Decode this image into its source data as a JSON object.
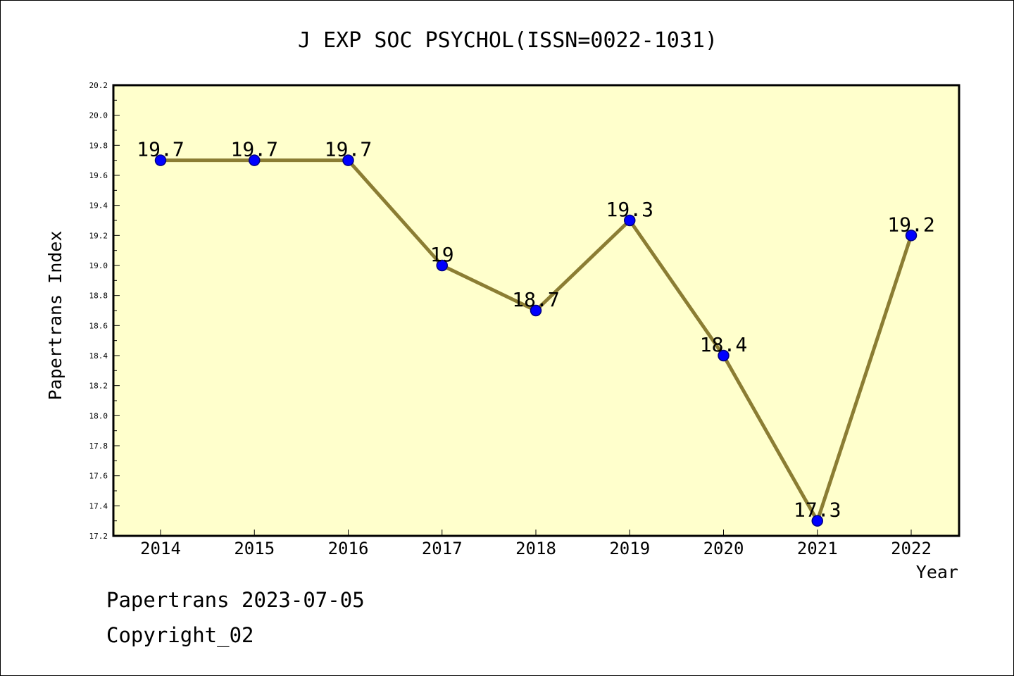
{
  "chart_data": {
    "type": "line",
    "title": "J EXP SOC PSYCHOL(ISSN=0022-1031)",
    "xlabel": "Year",
    "ylabel": "Papertrans Index",
    "categories": [
      "2014",
      "2015",
      "2016",
      "2017",
      "2018",
      "2019",
      "2020",
      "2021",
      "2022"
    ],
    "series": [
      {
        "name": "Papertrans Index",
        "values": [
          19.7,
          19.7,
          19.7,
          19.0,
          18.7,
          19.3,
          18.4,
          17.3,
          19.2
        ],
        "labels": [
          "19.7",
          "19.7",
          "19.7",
          "19",
          "18.7",
          "19.3",
          "18.4",
          "17.3",
          "19.2"
        ]
      }
    ],
    "ylim": [
      17.2,
      20.2
    ],
    "yticks": [
      "17.2",
      "17.4",
      "17.6",
      "17.8",
      "18.0",
      "18.2",
      "18.4",
      "18.6",
      "18.8",
      "19.0",
      "19.2",
      "19.4",
      "19.6",
      "19.8",
      "20.0",
      "20.2"
    ],
    "grid": false,
    "colors": {
      "plot_background": "#ffffcc",
      "line": "#8b7d33",
      "marker_fill": "#0000ff",
      "marker_stroke": "#000080",
      "axis": "#000000"
    }
  },
  "footer": {
    "source_line": "Papertrans 2023-07-05",
    "copyright_line": "Copyright_02"
  }
}
